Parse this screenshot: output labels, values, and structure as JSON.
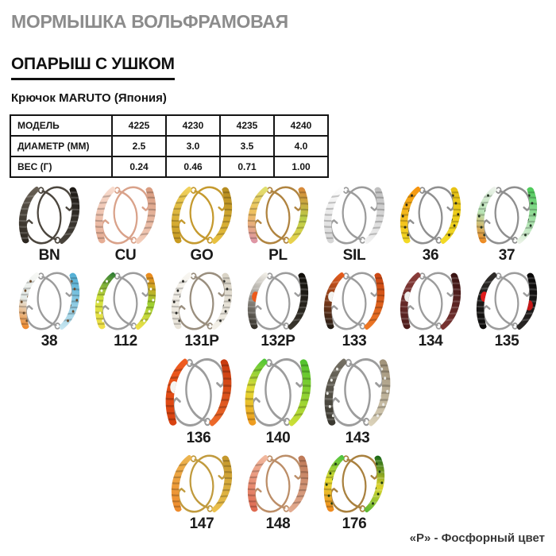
{
  "header": {
    "title": "МОРМЫШКА ВОЛЬФРАМОВАЯ",
    "subtitle": "ОПАРЫШ С УШКОМ",
    "hook_line": "Крючок MARUTO (Япония)"
  },
  "spec_table": {
    "rows": [
      {
        "label": "МОДЕЛЬ",
        "values": [
          "4225",
          "4230",
          "4235",
          "4240"
        ]
      },
      {
        "label": "ДИАМЕТР (ММ)",
        "values": [
          "2.5",
          "3.0",
          "3.5",
          "4.0"
        ]
      },
      {
        "label": "ВЕС (Г)",
        "values": [
          "0.24",
          "0.46",
          "0.71",
          "1.00"
        ]
      }
    ]
  },
  "variants": {
    "rows": [
      [
        {
          "code": "BN",
          "hook": "#4c463e",
          "left": [
            "#6a6257",
            "#2b261f"
          ],
          "right": [
            "#4a453d",
            "#1d1915"
          ]
        },
        {
          "code": "CU",
          "hook": "#d9a28a",
          "left": [
            "#f8ddd0",
            "#e6ad94"
          ],
          "right": [
            "#f4cfbc",
            "#d99c80"
          ]
        },
        {
          "code": "GO",
          "hook": "#c59a2f",
          "left": [
            "#f2d35e",
            "#c89a1f"
          ],
          "right": [
            "#eac342",
            "#b68c20"
          ]
        },
        {
          "code": "PL",
          "hook": "#b08440",
          "left": [
            "#dfe06e",
            "#eec05e",
            "#de95a6"
          ],
          "right": [
            "#ecd24e",
            "#bace48",
            "#d8893a"
          ]
        },
        {
          "code": "SIL",
          "hook": "#9c9c9c",
          "left": [
            "#ffffff",
            "#d6d6d6"
          ],
          "right": [
            "#f2f2f2",
            "#bfbfbf"
          ]
        },
        {
          "code": "36",
          "hook": "#8f8f8f",
          "left": [
            "#f5930f",
            "#f3da25"
          ],
          "right": [
            "#f3da25",
            "#e7c214"
          ],
          "dots": "#2a2a1a"
        },
        {
          "code": "37",
          "hook": "#8f8f8f",
          "left": [
            "#eef3ec",
            "#b7e3b4",
            "#ee8a22"
          ],
          "right": [
            "#edf3e9",
            "#4fcb5b"
          ],
          "dots": "#223322"
        }
      ],
      [
        {
          "code": "38",
          "hook": "#9c9c9c",
          "left": [
            "#f7f8f5",
            "#e3e9e6",
            "#ee8a2e"
          ],
          "right": [
            "#c8e6f0",
            "#54b0d6"
          ],
          "dots": "#6a4a2a"
        },
        {
          "code": "112",
          "hook": "#9c9c9c",
          "left": [
            "#2e7c34",
            "#cfe13e",
            "#f1e04a"
          ],
          "right": [
            "#f1e04a",
            "#9cd030",
            "#ec8a1e"
          ],
          "dots": "#ffffff"
        },
        {
          "code": "131P",
          "hook": "#9a8f7f",
          "left": [
            "#f8f6f1",
            "#e9e4d9"
          ],
          "right": [
            "#f4f1e9",
            "#d9d3c5"
          ],
          "dots": "#2a2a26"
        },
        {
          "code": "132P",
          "hook": "#9c9c9c",
          "left": [
            "#f3f0e9",
            "#332f28"
          ],
          "right": [
            "#3b372f",
            "#100e09"
          ],
          "left_spot": "#ec5a1c"
        },
        {
          "code": "133",
          "hook": "#9c9c9c",
          "left": [
            "#e85d1d",
            "#221c15"
          ],
          "right": [
            "#ee7a26",
            "#ca4714"
          ],
          "left_spot": "#f2f2ef"
        },
        {
          "code": "134",
          "hook": "#9c9c9c",
          "left": [
            "#8c3e3b",
            "#4c1c1b"
          ],
          "right": [
            "#7c3533",
            "#391312"
          ],
          "left_spot": "#efefec"
        },
        {
          "code": "135",
          "hook": "#9c9c9c",
          "left": [
            "#302d2a",
            "#0d0c0b"
          ],
          "right": [
            "#2a2725",
            "#0a0909"
          ],
          "left_spot": "#e11b1b",
          "right_spot": "#c41717"
        }
      ],
      [
        {
          "code": "136",
          "hook": "#9c9c9c",
          "left": [
            "#ef5d21",
            "#d84210"
          ],
          "right": [
            "#ee6b2b",
            "#c83b0f"
          ],
          "left_spot": "#f5f5f2"
        },
        {
          "code": "140",
          "hook": "#9c9c9c",
          "left": [
            "#4ec637",
            "#e5dd37",
            "#ee9a1f"
          ],
          "right": [
            "#cedf37",
            "#52c32f"
          ]
        },
        {
          "code": "143",
          "hook": "#9c9c9c",
          "left": [
            "#767165",
            "#39372f"
          ],
          "right": [
            "#dbd2ba",
            "#a1937a"
          ],
          "dots": "#e9e9e4"
        }
      ],
      [
        {
          "code": "147",
          "hook": "#c19b3e",
          "left": [
            "#ebb550",
            "#ee8b2d"
          ],
          "right": [
            "#edc24e",
            "#c4972c"
          ]
        },
        {
          "code": "148",
          "hook": "#bc8e68",
          "left": [
            "#f1baa0",
            "#de6a50"
          ],
          "right": [
            "#e3ac91",
            "#bf7a58"
          ]
        },
        {
          "code": "176",
          "hook": "#a9813f",
          "left": [
            "#4ac23e",
            "#e7db30",
            "#ee8a1f"
          ],
          "right": [
            "#5bb734",
            "#ddd32b",
            "#1e6a17"
          ],
          "dots": "#1d3a13"
        }
      ]
    ]
  },
  "footnote": "«Р» - Фосфорный цвет"
}
